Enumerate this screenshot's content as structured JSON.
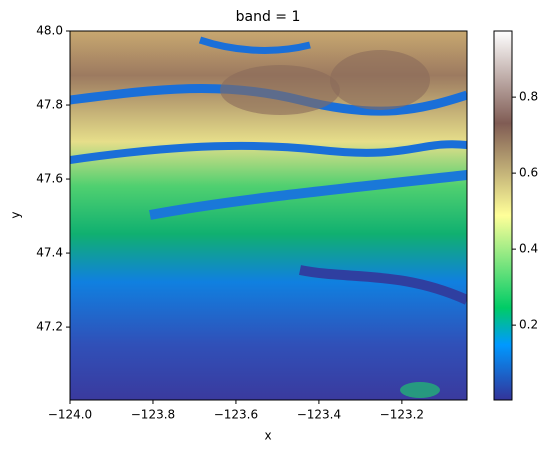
{
  "chart_data": {
    "type": "image",
    "title": "band = 1",
    "x_label": "x",
    "y_label": "y",
    "colormap": "terrain",
    "xlim": [
      -124.0,
      -123.043
    ],
    "ylim": [
      47.003,
      48.0
    ],
    "xticks": [
      {
        "value": -124.0,
        "label": "−124.0"
      },
      {
        "value": -123.8,
        "label": "−123.8"
      },
      {
        "value": -123.6,
        "label": "−123.6"
      },
      {
        "value": -123.4,
        "label": "−123.4"
      },
      {
        "value": -123.2,
        "label": "−123.2"
      }
    ],
    "yticks": [
      {
        "value": 47.2,
        "label": "47.2"
      },
      {
        "value": 47.4,
        "label": "47.4"
      },
      {
        "value": 47.6,
        "label": "47.6"
      },
      {
        "value": 47.8,
        "label": "47.8"
      },
      {
        "value": 48.0,
        "label": "48.0"
      }
    ],
    "clim": [
      0.003,
      0.974
    ],
    "cticks": [
      0.2,
      0.4,
      0.6,
      0.8
    ]
  }
}
